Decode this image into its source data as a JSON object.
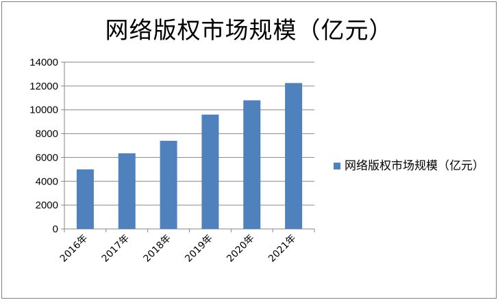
{
  "chart_data": {
    "type": "bar",
    "title": "网络版权市场规模（亿元）",
    "categories": [
      "2016年",
      "2017年",
      "2018年",
      "2019年",
      "2020年",
      "2021年"
    ],
    "series": [
      {
        "name": "网络版权市场规模（亿元）",
        "values": [
          5000,
          6350,
          7400,
          9600,
          10800,
          12250
        ],
        "color": "#4f81bd"
      }
    ],
    "ylim": [
      0,
      14000
    ],
    "yticks": [
      0,
      2000,
      4000,
      6000,
      8000,
      10000,
      12000,
      14000
    ],
    "grid": true,
    "legend": "right"
  }
}
